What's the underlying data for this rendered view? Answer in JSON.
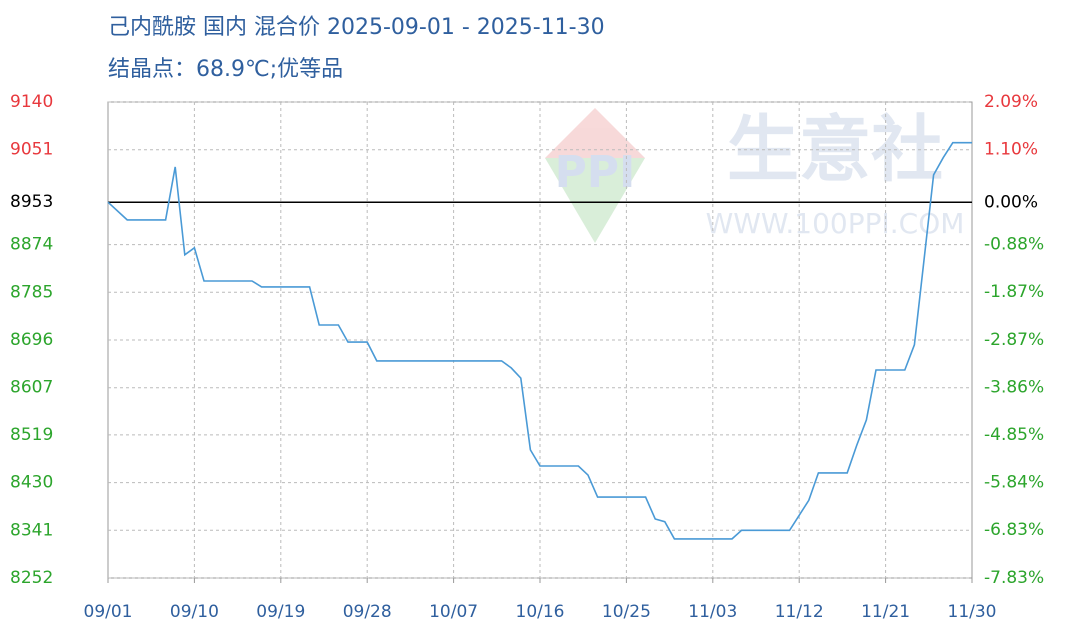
{
  "chart_data": {
    "type": "line",
    "title": "己内酰胺 国内 混合价 2025-09-01 - 2025-11-30",
    "subtitle": "结晶点：68.9℃;优等品",
    "watermark": {
      "logo": "PPI",
      "name": "生意社",
      "url": "WWW.100PPI.COM"
    },
    "x": [
      "09/01",
      "09/03",
      "09/07",
      "09/08",
      "09/09",
      "09/10",
      "09/11",
      "09/16",
      "09/17",
      "09/22",
      "09/23",
      "09/25",
      "09/26",
      "09/28",
      "09/29",
      "10/12",
      "10/13",
      "10/14",
      "10/15",
      "10/16",
      "10/20",
      "10/21",
      "10/22",
      "10/27",
      "10/28",
      "10/29",
      "10/30",
      "11/05",
      "11/06",
      "11/11",
      "11/12",
      "11/13",
      "11/14",
      "11/17",
      "11/18",
      "11/19",
      "11/20",
      "11/23",
      "11/24",
      "11/25",
      "11/26",
      "11/27",
      "11/28",
      "11/30"
    ],
    "values": [
      8953,
      8920,
      8920,
      9019,
      8855,
      8868,
      8806,
      8806,
      8795,
      8795,
      8724,
      8724,
      8692,
      8692,
      8657,
      8657,
      8644,
      8625,
      8491,
      8461,
      8461,
      8444,
      8403,
      8403,
      8362,
      8357,
      8325,
      8325,
      8341,
      8341,
      8369,
      8397,
      8448,
      8448,
      8500,
      8547,
      8640,
      8640,
      8687,
      8845,
      9004,
      9036,
      9064,
      9064
    ],
    "color": "#4a9ad6",
    "xticks": [
      "09/01",
      "09/10",
      "09/19",
      "09/28",
      "10/07",
      "10/16",
      "10/25",
      "11/03",
      "11/12",
      "11/21",
      "11/30"
    ],
    "ylim": [
      8252,
      9140
    ],
    "yticks": [
      9140,
      9051,
      8953,
      8874,
      8785,
      8696,
      8607,
      8519,
      8430,
      8341,
      8252
    ],
    "y2lim": [
      -7.83,
      2.09
    ],
    "y2ticks": [
      {
        "value": 2.09,
        "label": "2.09%"
      },
      {
        "value": 1.1,
        "label": "1.10%"
      },
      {
        "value": 0,
        "label": "0.00%"
      },
      {
        "value": -0.88,
        "label": "-0.88%"
      },
      {
        "value": -1.87,
        "label": "-1.87%"
      },
      {
        "value": -2.87,
        "label": "-2.87%"
      },
      {
        "value": -3.86,
        "label": "-3.86%"
      },
      {
        "value": -4.85,
        "label": "-4.85%"
      },
      {
        "value": -5.84,
        "label": "-5.84%"
      },
      {
        "value": -6.83,
        "label": "-6.83%"
      },
      {
        "value": -7.83,
        "label": "-7.83%"
      }
    ],
    "grid": true,
    "tick_colors": {
      "up": "#e8383d",
      "flat": "#000000",
      "down": "#2ca52c"
    }
  }
}
